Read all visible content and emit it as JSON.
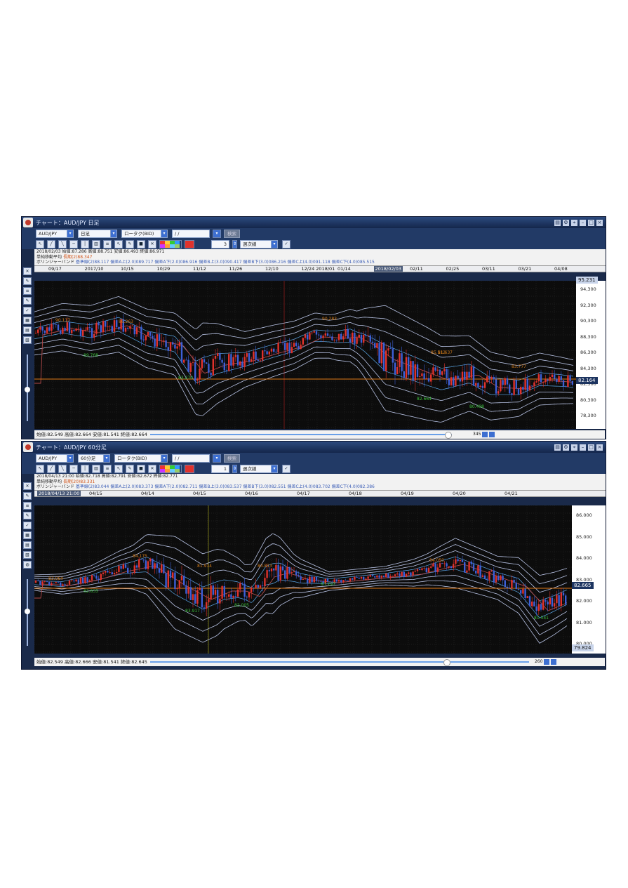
{
  "windows": [
    {
      "title": "チャート：AUD/JPY 日足",
      "pair": "AUD/JPY",
      "timeframe": "日足",
      "price_type": "ロータク(BID)",
      "date_field": "   /   /   ",
      "search_label": "検索",
      "count_value": "3",
      "line_type": "週次線",
      "info_line1": "2018/02/03 始値:87.286 高値:88.751 安値:86.493 終値:86.971",
      "info_line2_label": "単純移動平均",
      "info_line2_value": "長期(2)88.347",
      "info_line3_label": "ボリンジャーバンド",
      "info_line3_value": "基準線(2)88.117 偏差A上(2.0)089.717 偏差A下(2.0)086.916 偏差B上(3.0)090.417 偏差B下(3.0)086.216 偏差C上(4.0)091.118 偏差C下(4.0)085.515",
      "date_ticks": [
        "09/17",
        "2017/10",
        "10/15",
        "10/29",
        "11/12",
        "11/26",
        "12/10",
        "12/24 2018/01",
        "01/14",
        "2018/02/03",
        "02/11",
        "02/25",
        "03/11",
        "03/21",
        "04/08"
      ],
      "price_ticks": [
        "94,300",
        "92,300",
        "90,300",
        "88,300",
        "86,300",
        "84,300",
        "82,300",
        "80,300",
        "78,300"
      ],
      "top_tag": "95.231",
      "current_tag": "82.164",
      "annotations": [
        "90.117",
        "89.768",
        "86.263",
        "83.270",
        "90.283",
        "85.512",
        "82.664",
        "81.637",
        "80.498",
        "83.777"
      ],
      "status": "始値:82.549 高値:82.664 安値:81.541 終値:82.664",
      "zoom": "345"
    },
    {
      "title": "チャート：AUD/JPY 60分足",
      "pair": "AUD/JPY",
      "timeframe": "60分足",
      "price_type": "ロータク(BID)",
      "date_field": "   /   /   ",
      "search_label": "検索",
      "count_value": "1",
      "line_type": "週次線",
      "info_line1": "2018/04/13 21:00 始値:82.718 高値:82.791 安値:82.672 終値:82.771",
      "info_line2_label": "単純移動平均",
      "info_line2_value": "長期(20)83.331",
      "info_line3_label": "ボリンジャーバンド",
      "info_line3_value": "基準線(2)83.044 偏差A上(2.0)083.373 偏差A下(2.0)082.711 偏差B上(3.0)083.537 偏差B下(3.0)082.551 偏差C上(4.0)083.702 偏差C下(4.0)082.386",
      "date_ticks": [
        "2018/04/13 21:00",
        "04/15",
        "04/14",
        "04/15",
        "04/16",
        "04/17",
        "04/18",
        "04/19",
        "04/20",
        "04/21"
      ],
      "price_ticks": [
        "86.000",
        "85.000",
        "84.000",
        "83.000",
        "82.000",
        "81.000",
        "80.000"
      ],
      "current_tag": "82.665",
      "bottom_tag": "79.824",
      "annotations": [
        "83.064",
        "82.835",
        "84.175",
        "83.917",
        "81.914",
        "82.005",
        "83.813",
        "83.297",
        "84.050",
        "81.541"
      ],
      "status": "始値:82.549 高値:82.666 安値:81.541 終値:82.645",
      "zoom": "260"
    }
  ],
  "colors": {
    "bull": "#e0322c",
    "bear": "#3d5fd6",
    "band": "#b9c4e6",
    "band_inner": "#5aa8e8",
    "ma": "#b34a4a",
    "price_line": "#e07a18",
    "grid": "#2a2a2a"
  }
}
